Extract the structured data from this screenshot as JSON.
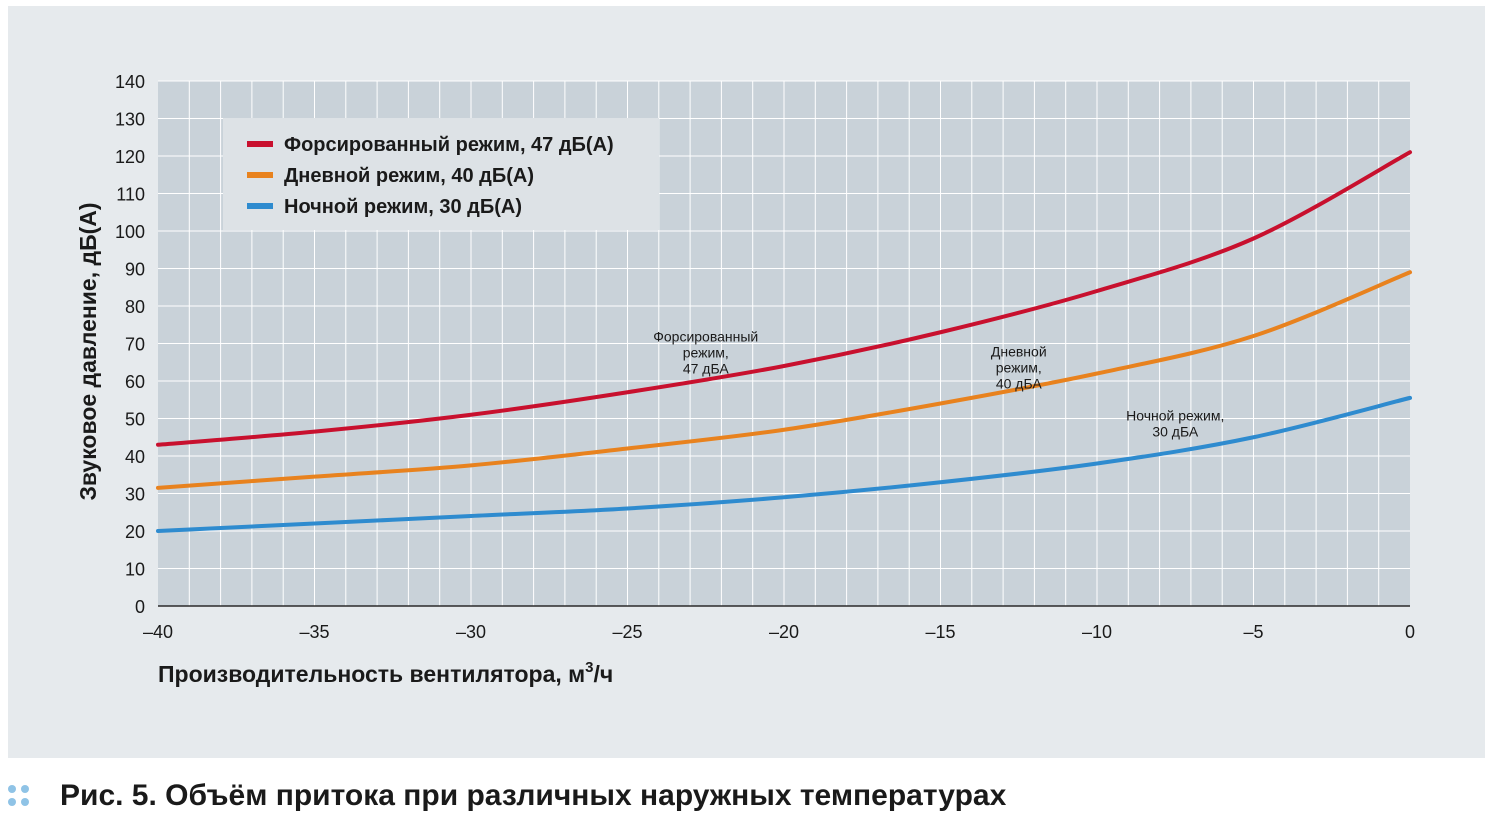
{
  "chart_data": {
    "type": "line",
    "title": "",
    "xlabel": "Производительность вентилятора, м",
    "xlabel_sup": "3",
    "xlabel_suffix": "/ч",
    "ylabel": "Звуковое давление, дБ(А)",
    "xlim": [
      -40,
      0
    ],
    "ylim": [
      0,
      140
    ],
    "xticks": [
      -40,
      -35,
      -30,
      -25,
      -20,
      -15,
      -10,
      -5,
      0
    ],
    "xtick_labels": [
      "–40",
      "–35",
      "–30",
      "–25",
      "–20",
      "–15",
      "–10",
      "–5",
      "0"
    ],
    "yticks": [
      0,
      10,
      20,
      30,
      40,
      50,
      60,
      70,
      80,
      90,
      100,
      110,
      120,
      130,
      140
    ],
    "grid": true,
    "legend_position": "top-left",
    "x": [
      -40,
      -35,
      -30,
      -25,
      -20,
      -15,
      -10,
      -5,
      0
    ],
    "series": [
      {
        "name": "Форсированный режим, 47 дБ(А)",
        "color": "#c8102e",
        "values": [
          43,
          46.5,
          51,
          57,
          64,
          73,
          84,
          98,
          121
        ]
      },
      {
        "name": "Дневной режим, 40 дБ(А)",
        "color": "#e8821e",
        "values": [
          31.5,
          34.5,
          37.5,
          42,
          47,
          54,
          62,
          72,
          89
        ]
      },
      {
        "name": "Ночной режим, 30 дБ(А)",
        "color": "#2e8bcf",
        "values": [
          20,
          22,
          24,
          26,
          29,
          33,
          38,
          45,
          55.5
        ]
      }
    ],
    "annotations": [
      {
        "lines": [
          "Форсированный",
          "режим,",
          "47 дБА"
        ],
        "x": -22.5,
        "y": 70.5
      },
      {
        "lines": [
          "Дневной",
          "режим,",
          "40 дБА"
        ],
        "x": -12.5,
        "y": 66.5
      },
      {
        "lines": [
          "Ночной режим,",
          "30 дБА"
        ],
        "x": -7.5,
        "y": 49.5
      }
    ]
  },
  "caption": {
    "prefix": "Рис. 5.",
    "text": " Объём притока при различных наружных температурах"
  },
  "colors": {
    "panel": "#e6eaed",
    "plot_bg": "#c9d2d9",
    "grid": "#ffffff",
    "legend_bg": "#dde2e6",
    "caption_dots": "#8fc3e6"
  }
}
